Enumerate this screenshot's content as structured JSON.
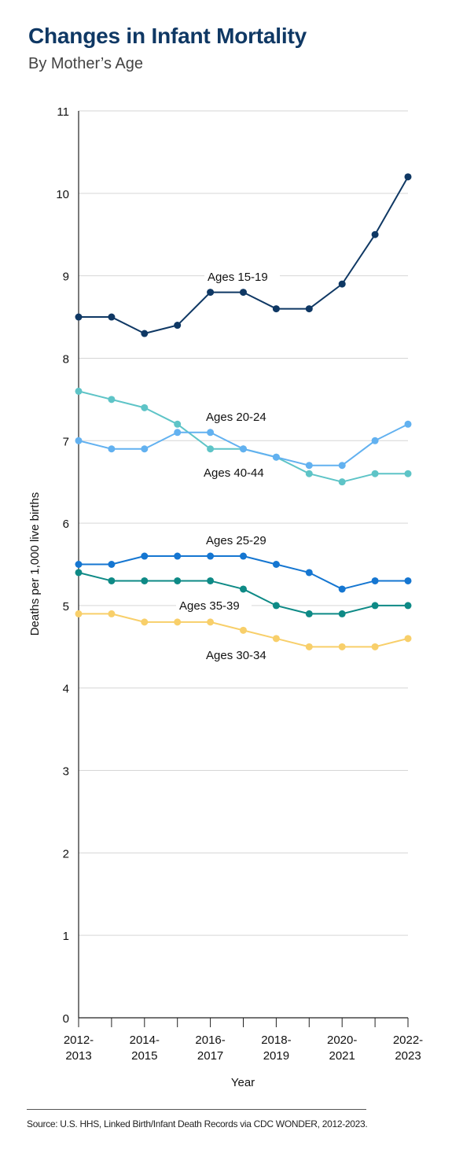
{
  "header": {
    "title": "Changes in Infant Mortality",
    "subtitle": "By Mother’s Age"
  },
  "footer": {
    "source": "Source: U.S. HHS, Linked Birth/Infant Death Records via CDC WONDER, 2012-2023."
  },
  "chart_data": {
    "type": "line",
    "title": "Changes in Infant Mortality",
    "subtitle": "By Mother’s Age",
    "xlabel": "Year",
    "ylabel": "Deaths per 1,000 live births",
    "ylim": [
      0,
      11
    ],
    "yticks": [
      0,
      1,
      2,
      3,
      4,
      5,
      6,
      7,
      8,
      9,
      10,
      11
    ],
    "grid": "horizontal",
    "x": [
      "2012-2013",
      "2013-2014",
      "2014-2015",
      "2015-2016",
      "2016-2017",
      "2017-2018",
      "2018-2019",
      "2019-2020",
      "2020-2021",
      "2021-2022",
      "2022-2023"
    ],
    "xtick_labels": [
      {
        "index": 0,
        "lines": [
          "2012-",
          "2013"
        ]
      },
      {
        "index": 2,
        "lines": [
          "2014-",
          "2015"
        ]
      },
      {
        "index": 4,
        "lines": [
          "2016-",
          "2017"
        ]
      },
      {
        "index": 6,
        "lines": [
          "2018-",
          "2019"
        ]
      },
      {
        "index": 8,
        "lines": [
          "2020-",
          "2021"
        ]
      },
      {
        "index": 10,
        "lines": [
          "2022-",
          "2023"
        ]
      }
    ],
    "series": [
      {
        "name": "Ages 15-19",
        "color": "#0f3864",
        "values": [
          8.5,
          8.5,
          8.3,
          8.4,
          8.8,
          8.8,
          8.6,
          8.6,
          8.9,
          9.5,
          10.2
        ]
      },
      {
        "name": "Ages 20-24",
        "color": "#5ec4c7",
        "values": [
          7.6,
          7.5,
          7.4,
          7.2,
          6.9,
          6.9,
          6.8,
          6.6,
          6.5,
          6.6,
          6.6
        ]
      },
      {
        "name": "Ages 40-44",
        "color": "#62b1f0",
        "values": [
          7.0,
          6.9,
          6.9,
          7.1,
          7.1,
          6.9,
          6.8,
          6.7,
          6.7,
          7.0,
          7.2
        ]
      },
      {
        "name": "Ages 25-29",
        "color": "#1576d1",
        "values": [
          5.5,
          5.5,
          5.6,
          5.6,
          5.6,
          5.6,
          5.5,
          5.4,
          5.2,
          5.3,
          5.3
        ]
      },
      {
        "name": "Ages 35-39",
        "color": "#0e8a86",
        "values": [
          5.4,
          5.3,
          5.3,
          5.3,
          5.3,
          5.2,
          5.0,
          4.9,
          4.9,
          5.0,
          5.0
        ]
      },
      {
        "name": "Ages 30-34",
        "color": "#f8cf6a",
        "values": [
          4.9,
          4.9,
          4.8,
          4.8,
          4.8,
          4.7,
          4.6,
          4.5,
          4.5,
          4.5,
          4.6
        ]
      }
    ],
    "annotations": [
      "Ages 15-19",
      "Ages 20-24",
      "Ages 40-44",
      "Ages 25-29",
      "Ages 35-39",
      "Ages 30-34"
    ]
  }
}
